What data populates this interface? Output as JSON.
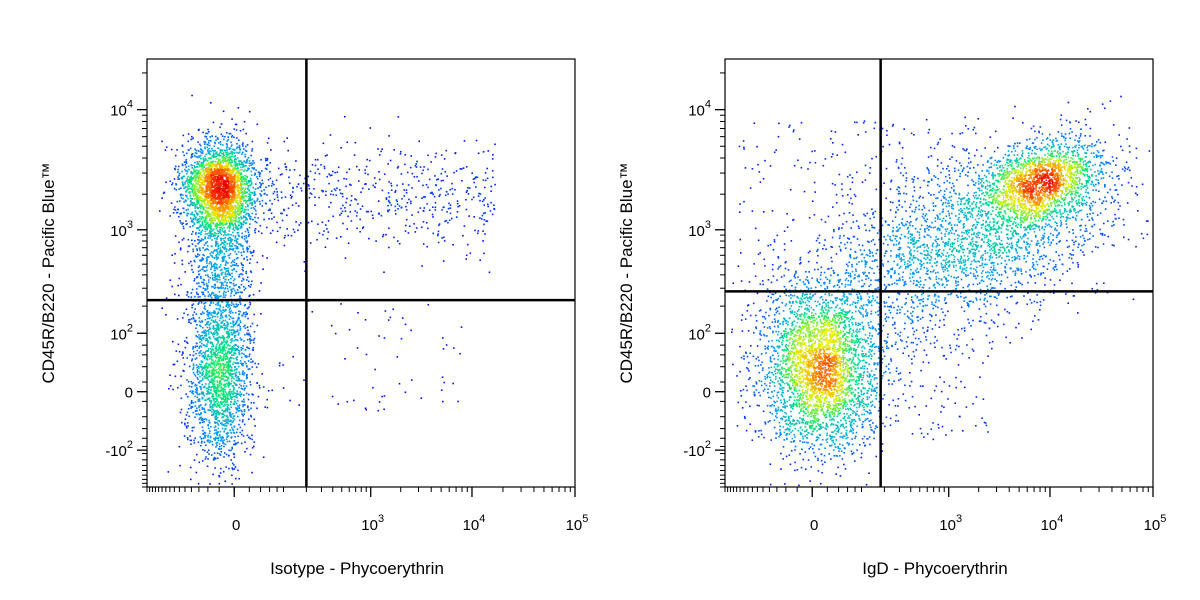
{
  "chart_data": [
    {
      "type": "scatter",
      "subtype": "flow-cytometry-density-plot",
      "xlabel": "Isotype - Phycoerythrin",
      "ylabel": "CD45R/B220 - Pacific Blue™",
      "x_scale": "biexponential",
      "y_scale": "biexponential",
      "x_ticks": [
        "0",
        "10^3",
        "10^4",
        "10^5"
      ],
      "y_ticks": [
        "-10^2",
        "0",
        "10^2",
        "10^3",
        "10^4"
      ],
      "gates": {
        "x": 200,
        "y": 230
      },
      "populations": [
        {
          "name": "",
          "x_center": -20,
          "y_center": 2300,
          "spread": "tight",
          "density": "high"
        },
        {
          "name": "",
          "x_center": -20,
          "y_center": 20,
          "spread": "broad",
          "density": "medium"
        },
        {
          "name": "",
          "x_center": 2000,
          "y_center": 1800,
          "spread": "sparse",
          "density": "low"
        }
      ],
      "colormap": [
        "#0000ff",
        "#00c0ff",
        "#00ff80",
        "#ffff00",
        "#ff8000",
        "#ff0000"
      ]
    },
    {
      "type": "scatter",
      "subtype": "flow-cytometry-density-plot",
      "xlabel": "IgD - Phycoerythrin",
      "ylabel": "CD45R/B220 - Pacific Blue™",
      "x_scale": "biexponential",
      "y_scale": "biexponential",
      "x_ticks": [
        "0",
        "10^3",
        "10^4",
        "10^5"
      ],
      "y_ticks": [
        "-10^2",
        "0",
        "10^2",
        "10^3",
        "10^4"
      ],
      "gates": {
        "x": 180,
        "y": 280
      },
      "populations": [
        {
          "name": "",
          "x_center": 10,
          "y_center": 30,
          "spread": "broad",
          "density": "high"
        },
        {
          "name": "",
          "x_center": 8000,
          "y_center": 2500,
          "spread": "tight",
          "density": "high"
        },
        {
          "name": "",
          "x_center": 1500,
          "y_center": 800,
          "spread": "diagonal",
          "density": "medium"
        }
      ],
      "colormap": [
        "#0000ff",
        "#00c0ff",
        "#00ff80",
        "#ffff00",
        "#ff8000",
        "#ff0000"
      ]
    }
  ]
}
